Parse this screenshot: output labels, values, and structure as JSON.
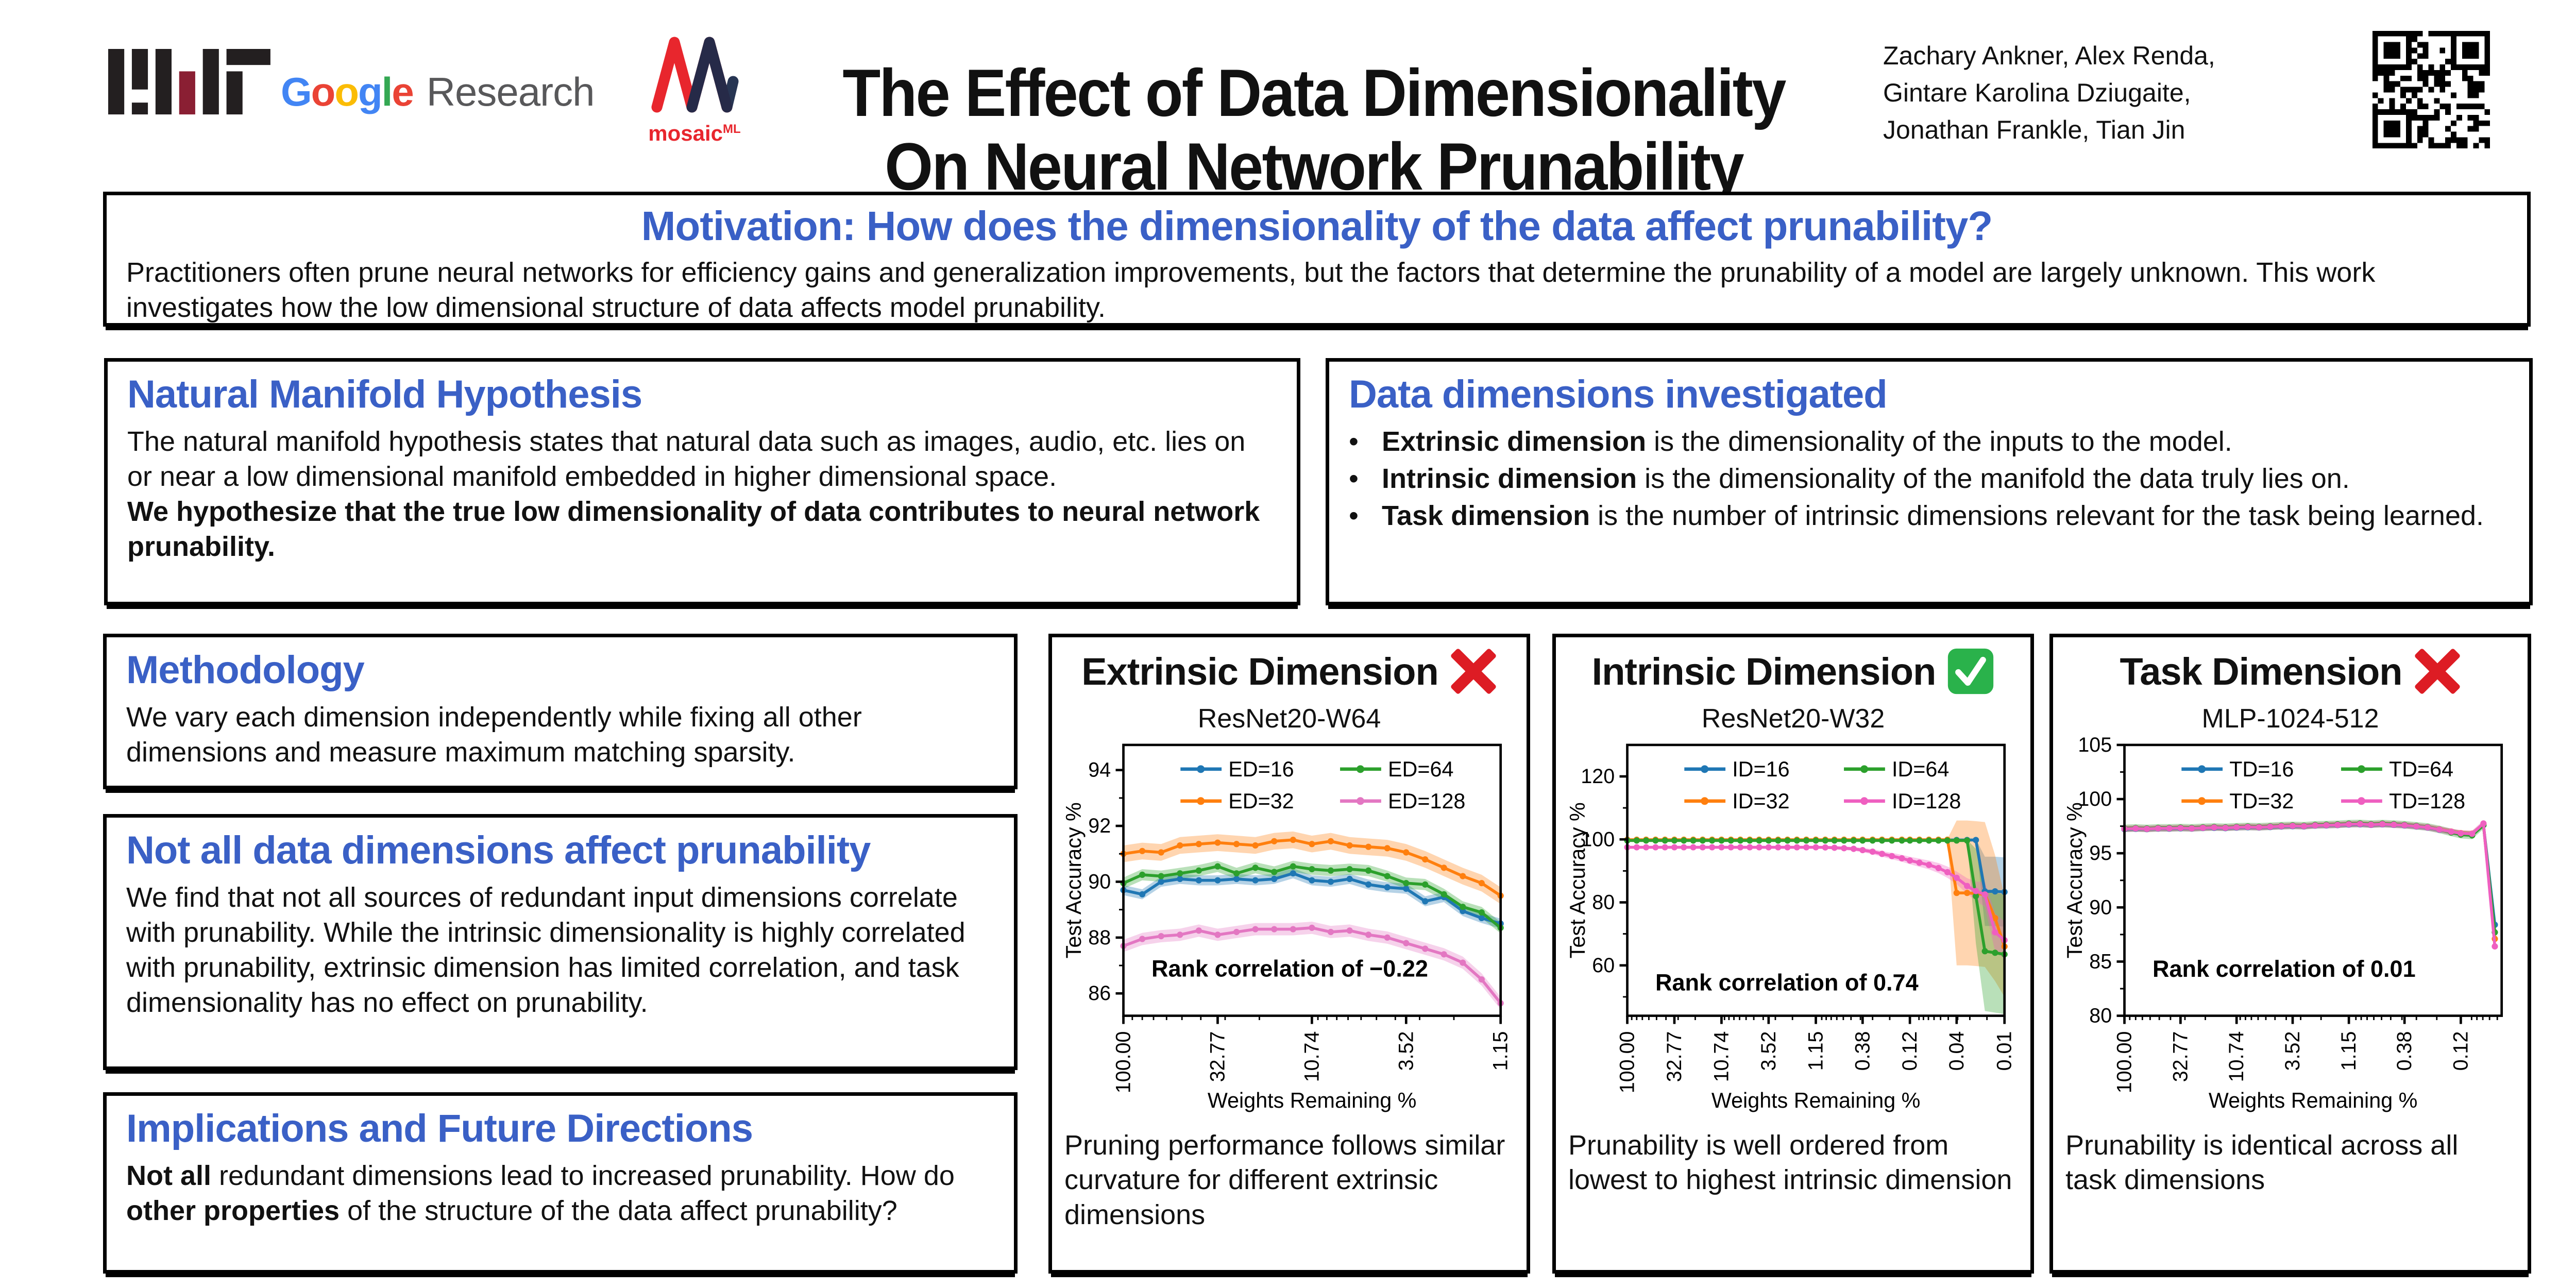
{
  "header": {
    "title_line1": "The Effect of Data Dimensionality",
    "title_line2": "On Neural Network Prunability",
    "authors_lines": [
      "Zachary Ankner, Alex Renda,",
      "Gintare Karolina Dziugaite,",
      "Jonathan Frankle, Tian Jin"
    ],
    "logos": {
      "google_letters": [
        "G",
        "o",
        "o",
        "g",
        "l",
        "e"
      ],
      "google_research": "Research",
      "mosaic_word": "mosaic",
      "mosaic_sup": "ML"
    }
  },
  "motivation": {
    "title": "Motivation: How does the dimensionality of the data affect prunability?",
    "body": "Practitioners often prune neural networks for efficiency gains and generalization improvements, but the factors that determine the prunability of a model are largely unknown. This work investigates how the low dimensional structure of data affects model prunability."
  },
  "manifold": {
    "title": "Natural Manifold Hypothesis",
    "body": "The natural manifold hypothesis states that natural data such as images, audio, etc. lies on or near a low dimensional manifold embedded in higher dimensional space.",
    "body_bold": "We hypothesize that the true low dimensionality of data contributes to neural network prunability."
  },
  "dimensions": {
    "title": "Data dimensions investigated",
    "bullet": "•",
    "items": [
      {
        "lead": "Extrinsic dimension",
        "rest": " is the dimensionality of the inputs to the model."
      },
      {
        "lead": "Intrinsic dimension",
        "rest": " is the dimensionality of the manifold the data truly lies on."
      },
      {
        "lead": "Task dimension",
        "rest": " is the number of intrinsic dimensions relevant for the task being learned."
      }
    ]
  },
  "methodology": {
    "title": "Methodology",
    "body": "We vary each dimension independently while fixing all other dimensions and measure maximum matching sparsity."
  },
  "findings": {
    "title": "Not all data dimensions affect prunability",
    "body": "We find that not all sources of redundant input dimensions correlate with prunability. While the intrinsic dimensionality is highly correlated with prunability, extrinsic dimension has limited correlation, and task dimensionality has no effect on prunability."
  },
  "implications": {
    "title": "Implications and Future Directions",
    "b1": "Not all",
    "t1": " redundant dimensions lead to increased prunability. How do ",
    "b2": "other properties",
    "t2": " of the structure of the data affect prunability?"
  },
  "colors": {
    "accent_blue": "#3a60c6",
    "cross_red": "#dd1c24",
    "check_green": "#2ab24b"
  },
  "chart_data": [
    {
      "type": "line",
      "title": "Extrinsic Dimension",
      "status": "negative",
      "subtitle": "ResNet20-W64",
      "xlabel": "Weights Remaining %",
      "ylabel": "Test Accuracy %",
      "x_log": true,
      "xlim": [
        100,
        1.15
      ],
      "ylim": [
        85.2,
        94.9
      ],
      "yticks": [
        86,
        88,
        90,
        92,
        94
      ],
      "xticks": [
        {
          "v": 100,
          "label": "100.00"
        },
        {
          "v": 32.77,
          "label": "32.77"
        },
        {
          "v": 10.74,
          "label": "10.74"
        },
        {
          "v": 3.52,
          "label": "3.52"
        },
        {
          "v": 1.15,
          "label": "1.15"
        }
      ],
      "x": [
        100,
        80,
        64,
        51.2,
        40.96,
        32.77,
        26.21,
        20.97,
        16.78,
        13.42,
        10.74,
        8.59,
        6.87,
        5.5,
        4.4,
        3.52,
        2.81,
        2.25,
        1.8,
        1.44,
        1.15
      ],
      "series": [
        {
          "name": "ED=16",
          "color": "#1f77b4",
          "spread": 0.18,
          "values": [
            89.7,
            89.55,
            90.0,
            90.1,
            90.05,
            90.05,
            90.1,
            90.05,
            90.1,
            90.3,
            90.05,
            90.0,
            90.1,
            89.9,
            89.8,
            89.75,
            89.3,
            89.45,
            88.95,
            88.7,
            88.5
          ]
        },
        {
          "name": "ED=32",
          "color": "#ff7f0e",
          "spread": 0.3,
          "values": [
            91.0,
            91.1,
            91.05,
            91.3,
            91.35,
            91.4,
            91.35,
            91.3,
            91.45,
            91.5,
            91.35,
            91.45,
            91.3,
            91.25,
            91.2,
            91.05,
            90.8,
            90.5,
            90.2,
            89.95,
            89.5
          ]
        },
        {
          "name": "ED=64",
          "color": "#2ca02c",
          "spread": 0.2,
          "values": [
            89.95,
            90.25,
            90.2,
            90.3,
            90.4,
            90.55,
            90.3,
            90.5,
            90.35,
            90.55,
            90.45,
            90.4,
            90.45,
            90.4,
            90.2,
            89.95,
            89.9,
            89.55,
            89.1,
            88.9,
            88.35
          ]
        },
        {
          "name": "ED=128",
          "color": "#e377c2",
          "spread": 0.22,
          "values": [
            87.7,
            87.95,
            88.05,
            88.1,
            88.25,
            88.1,
            88.2,
            88.3,
            88.3,
            88.3,
            88.35,
            88.2,
            88.25,
            88.1,
            88.0,
            87.8,
            87.6,
            87.4,
            87.1,
            86.5,
            85.65
          ]
        }
      ],
      "annotation": "Rank correlation of −0.22",
      "annotation_y": 86.6,
      "caption": "Pruning performance follows similar curvature for different extrinsic dimensions"
    },
    {
      "type": "line",
      "title": "Intrinsic Dimension",
      "status": "positive",
      "subtitle": "ResNet20-W32",
      "xlabel": "Weights Remaining %",
      "ylabel": "Test Accuracy %",
      "x_log": true,
      "xlim": [
        100,
        0.0132
      ],
      "ylim": [
        44,
        130
      ],
      "yticks": [
        60,
        80,
        100,
        120
      ],
      "xticks": [
        {
          "v": 100,
          "label": "100.00"
        },
        {
          "v": 32.77,
          "label": "32.77"
        },
        {
          "v": 10.74,
          "label": "10.74"
        },
        {
          "v": 3.52,
          "label": "3.52"
        },
        {
          "v": 1.15,
          "label": "1.15"
        },
        {
          "v": 0.38,
          "label": "0.38"
        },
        {
          "v": 0.124,
          "label": "0.12"
        },
        {
          "v": 0.041,
          "label": "0.04"
        },
        {
          "v": 0.0132,
          "label": "0.01"
        }
      ],
      "x": [
        100,
        80,
        64,
        51.2,
        40.96,
        32.77,
        26.21,
        20.97,
        16.78,
        13.42,
        10.74,
        8.59,
        6.87,
        5.5,
        4.4,
        3.52,
        2.81,
        2.25,
        1.8,
        1.44,
        1.15,
        0.92,
        0.74,
        0.59,
        0.47,
        0.38,
        0.3,
        0.24,
        0.19,
        0.15,
        0.124,
        0.099,
        0.079,
        0.063,
        0.051,
        0.041,
        0.032,
        0.026,
        0.021,
        0.0165,
        0.0132
      ],
      "series": [
        {
          "name": "ID=16",
          "color": "#1f77b4",
          "values": [
            99.8,
            99.8,
            99.8,
            99.8,
            99.8,
            99.8,
            99.8,
            99.8,
            99.8,
            99.8,
            99.8,
            99.8,
            99.8,
            99.8,
            99.8,
            99.8,
            99.8,
            99.8,
            99.8,
            99.8,
            99.8,
            99.8,
            99.8,
            99.8,
            99.8,
            99.8,
            99.8,
            99.8,
            99.8,
            99.8,
            99.8,
            99.8,
            99.8,
            99.8,
            99.8,
            99.8,
            99.8,
            99.8,
            83.5,
            83.5,
            83.3
          ],
          "spread": [
            0.25,
            0.25,
            0.25,
            0.25,
            0.25,
            0.25,
            0.25,
            0.25,
            0.25,
            0.25,
            0.25,
            0.25,
            0.25,
            0.25,
            0.25,
            0.25,
            0.25,
            0.25,
            0.25,
            0.25,
            0.25,
            0.25,
            0.25,
            0.25,
            0.25,
            0.25,
            0.25,
            0.25,
            0.25,
            0.25,
            0.25,
            0.25,
            0.25,
            0.25,
            0.25,
            0.25,
            0.25,
            0.25,
            11,
            11,
            11
          ]
        },
        {
          "name": "ID=32",
          "color": "#ff7f0e",
          "values": [
            99.9,
            99.9,
            99.9,
            99.9,
            99.9,
            99.9,
            99.9,
            99.9,
            99.9,
            99.9,
            99.9,
            99.9,
            99.9,
            99.9,
            99.9,
            99.9,
            99.9,
            99.9,
            99.9,
            99.9,
            99.9,
            99.9,
            99.9,
            99.9,
            99.9,
            99.9,
            99.9,
            99.9,
            99.9,
            99.9,
            99.9,
            99.9,
            99.9,
            99.9,
            99.9,
            83.0,
            83.0,
            82.8,
            82.5,
            75.0,
            66.0
          ],
          "spread": [
            0.25,
            0.25,
            0.25,
            0.25,
            0.25,
            0.25,
            0.25,
            0.25,
            0.25,
            0.25,
            0.25,
            0.25,
            0.25,
            0.25,
            0.25,
            0.25,
            0.25,
            0.25,
            0.25,
            0.25,
            0.25,
            0.25,
            0.25,
            0.25,
            0.25,
            0.25,
            0.25,
            0.25,
            0.25,
            0.25,
            0.25,
            0.25,
            0.25,
            0.25,
            0.25,
            23,
            23,
            23,
            23,
            20,
            16
          ]
        },
        {
          "name": "ID=64",
          "color": "#2ca02c",
          "values": [
            99.65,
            99.65,
            99.65,
            99.65,
            99.65,
            99.65,
            99.65,
            99.65,
            99.65,
            99.65,
            99.65,
            99.65,
            99.65,
            99.65,
            99.65,
            99.65,
            99.65,
            99.65,
            99.65,
            99.65,
            99.65,
            99.65,
            99.65,
            99.65,
            99.65,
            99.65,
            99.65,
            99.65,
            99.65,
            99.65,
            99.65,
            99.65,
            99.65,
            99.65,
            99.65,
            99.65,
            99.65,
            82.0,
            64.5,
            64.0,
            63.5
          ],
          "spread": [
            0.25,
            0.25,
            0.25,
            0.25,
            0.25,
            0.25,
            0.25,
            0.25,
            0.25,
            0.25,
            0.25,
            0.25,
            0.25,
            0.25,
            0.25,
            0.25,
            0.25,
            0.25,
            0.25,
            0.25,
            0.25,
            0.25,
            0.25,
            0.25,
            0.25,
            0.25,
            0.25,
            0.25,
            0.25,
            0.25,
            0.25,
            0.25,
            0.25,
            0.25,
            0.25,
            0.25,
            0.25,
            15,
            19,
            19,
            19
          ]
        },
        {
          "name": "ID=128",
          "color": "#ef5fc0",
          "values": [
            97.5,
            97.5,
            97.5,
            97.5,
            97.5,
            97.5,
            97.5,
            97.5,
            97.5,
            97.5,
            97.5,
            97.5,
            97.5,
            97.5,
            97.5,
            97.5,
            97.5,
            97.5,
            97.5,
            97.5,
            97.5,
            97.45,
            97.35,
            97.2,
            97.0,
            96.6,
            96.1,
            95.4,
            94.7,
            94.0,
            93.3,
            92.6,
            91.9,
            90.9,
            89.6,
            87.8,
            85.2,
            83.6,
            82.5,
            70.5,
            68.0
          ],
          "spread": [
            0.4,
            0.4,
            0.4,
            0.4,
            0.4,
            0.4,
            0.4,
            0.4,
            0.4,
            0.4,
            0.4,
            0.4,
            0.4,
            0.4,
            0.4,
            0.4,
            0.4,
            0.4,
            0.4,
            0.4,
            0.4,
            0.5,
            0.5,
            0.6,
            0.6,
            0.7,
            0.8,
            0.9,
            1.0,
            1.1,
            1.2,
            1.3,
            1.4,
            1.6,
            1.8,
            2.0,
            2.5,
            3,
            4,
            6,
            6
          ]
        }
      ],
      "annotation": "Rank correlation of 0.74",
      "annotation_y": 52,
      "caption": "Prunability is well ordered from lowest to highest intrinsic dimension"
    },
    {
      "type": "line",
      "title": "Task Dimension",
      "status": "negative",
      "subtitle": "MLP-1024-512",
      "xlabel": "Weights Remaining %",
      "ylabel": "Test Accuracy %",
      "x_log": true,
      "xlim": [
        100,
        0.055
      ],
      "ylim": [
        80,
        105
      ],
      "yticks": [
        80,
        85,
        90,
        95,
        100,
        105
      ],
      "xticks": [
        {
          "v": 100,
          "label": "100.00"
        },
        {
          "v": 32.77,
          "label": "32.77"
        },
        {
          "v": 10.74,
          "label": "10.74"
        },
        {
          "v": 3.52,
          "label": "3.52"
        },
        {
          "v": 1.15,
          "label": "1.15"
        },
        {
          "v": 0.38,
          "label": "0.38"
        },
        {
          "v": 0.124,
          "label": "0.12"
        }
      ],
      "x": [
        100,
        80,
        64,
        51.2,
        40.96,
        32.77,
        26.21,
        20.97,
        16.78,
        13.42,
        10.74,
        8.59,
        6.87,
        5.5,
        4.4,
        3.52,
        2.81,
        2.25,
        1.8,
        1.44,
        1.15,
        0.92,
        0.74,
        0.59,
        0.47,
        0.38,
        0.3,
        0.24,
        0.19,
        0.15,
        0.124,
        0.099,
        0.079,
        0.063
      ],
      "series": [
        {
          "name": "TD=16",
          "color": "#1f77b4",
          "spread": 0.25,
          "values": [
            97.22,
            97.26,
            97.23,
            97.28,
            97.27,
            97.3,
            97.28,
            97.33,
            97.35,
            97.32,
            97.37,
            97.4,
            97.38,
            97.42,
            97.47,
            97.5,
            97.48,
            97.55,
            97.57,
            97.6,
            97.65,
            97.67,
            97.62,
            97.67,
            97.62,
            97.57,
            97.47,
            97.37,
            97.17,
            96.97,
            96.82,
            96.78,
            97.6,
            88.4
          ]
        },
        {
          "name": "TD=32",
          "color": "#ff7f0e",
          "spread": 0.25,
          "values": [
            97.28,
            97.3,
            97.26,
            97.32,
            97.31,
            97.35,
            97.31,
            97.36,
            97.4,
            97.36,
            97.42,
            97.45,
            97.41,
            97.46,
            97.51,
            97.55,
            97.51,
            97.59,
            97.61,
            97.64,
            97.7,
            97.72,
            97.66,
            97.71,
            97.66,
            97.61,
            97.51,
            97.41,
            97.21,
            97.0,
            96.86,
            96.81,
            97.63,
            87.1
          ]
        },
        {
          "name": "TD=64",
          "color": "#2ca02c",
          "spread": 0.35,
          "values": [
            97.3,
            97.33,
            97.29,
            97.34,
            97.34,
            97.37,
            97.34,
            97.39,
            97.42,
            97.39,
            97.44,
            97.47,
            97.44,
            97.49,
            97.54,
            97.57,
            97.54,
            97.62,
            97.64,
            97.67,
            97.73,
            97.75,
            97.69,
            97.74,
            97.69,
            97.63,
            97.53,
            97.42,
            97.2,
            96.92,
            96.72,
            96.65,
            97.6,
            87.7
          ]
        },
        {
          "name": "TD=128",
          "color": "#ef5fc0",
          "spread": 0.3,
          "values": [
            97.26,
            97.29,
            97.25,
            97.3,
            97.3,
            97.33,
            97.3,
            97.35,
            97.38,
            97.35,
            97.4,
            97.43,
            97.4,
            97.45,
            97.5,
            97.53,
            97.5,
            97.57,
            97.59,
            97.62,
            97.68,
            97.7,
            97.64,
            97.69,
            97.64,
            97.59,
            97.49,
            97.39,
            97.19,
            96.99,
            96.84,
            96.8,
            97.75,
            86.4
          ]
        }
      ],
      "annotation": "Rank correlation of 0.01",
      "annotation_y": 83.6,
      "caption": "Prunability is identical across all task dimensions"
    }
  ]
}
